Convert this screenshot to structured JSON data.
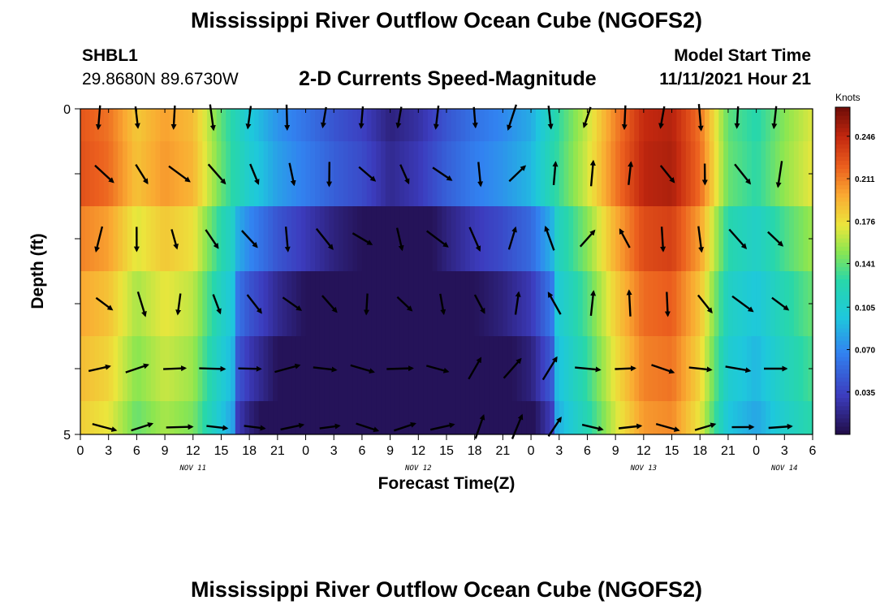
{
  "chart_data": {
    "type": "heatmap",
    "title": "Mississippi River Outflow Ocean Cube (NGOFS2)",
    "station": "SHBL1",
    "location": "29.8680N  89.6730W",
    "subtitle": "2-D Currents Speed-Magnitude",
    "model_start_label": "Model Start Time",
    "model_start_time": "11/11/2021 Hour 21",
    "xlabel": "Forecast Time(Z)",
    "ylabel": "Depth (ft)",
    "colorbar_label": "Knots",
    "colorbar_ticks": [
      "0.246",
      "0.211",
      "0.176",
      "0.141",
      "0.105",
      "0.070",
      "0.035"
    ],
    "colorbar_range": [
      0,
      0.27
    ],
    "y_ticks": [
      "0",
      "5"
    ],
    "ylim": [
      0,
      5
    ],
    "x_tick_labels": [
      "0",
      "3",
      "6",
      "9",
      "12",
      "15",
      "18",
      "21",
      "0",
      "3",
      "6",
      "9",
      "12",
      "15",
      "18",
      "21",
      "0",
      "3",
      "6",
      "9",
      "12",
      "15",
      "18",
      "21",
      "0",
      "3",
      "6"
    ],
    "x_range_hours": [
      0,
      78
    ],
    "date_labels": [
      {
        "text": "NOV 11",
        "hour": 12
      },
      {
        "text": "NOV 12",
        "hour": 36
      },
      {
        "text": "NOV 13",
        "hour": 60
      },
      {
        "text": "NOV 14",
        "hour": 75
      }
    ],
    "time_profile": {
      "hours": [
        0,
        3,
        6,
        9,
        12,
        15,
        18,
        21,
        24,
        27,
        30,
        33,
        36,
        39,
        42,
        45,
        48,
        51,
        54,
        57,
        60,
        63,
        66,
        69,
        72,
        75,
        78
      ],
      "speeds": [
        0.225,
        0.215,
        0.185,
        0.2,
        0.19,
        0.14,
        0.1,
        0.075,
        0.06,
        0.045,
        0.035,
        0.015,
        0.025,
        0.045,
        0.06,
        0.07,
        0.085,
        0.13,
        0.165,
        0.21,
        0.245,
        0.25,
        0.215,
        0.14,
        0.125,
        0.15,
        0.17
      ]
    },
    "depth_band_offsets": [
      0.0,
      0.005,
      -0.03,
      -0.055,
      -0.07,
      -0.085
    ],
    "grid": false
  },
  "vectors_note": "current direction arrows overlaid at every 4th hour",
  "dup_title": "Mississippi River Outflow Ocean Cube (NGOFS2)"
}
